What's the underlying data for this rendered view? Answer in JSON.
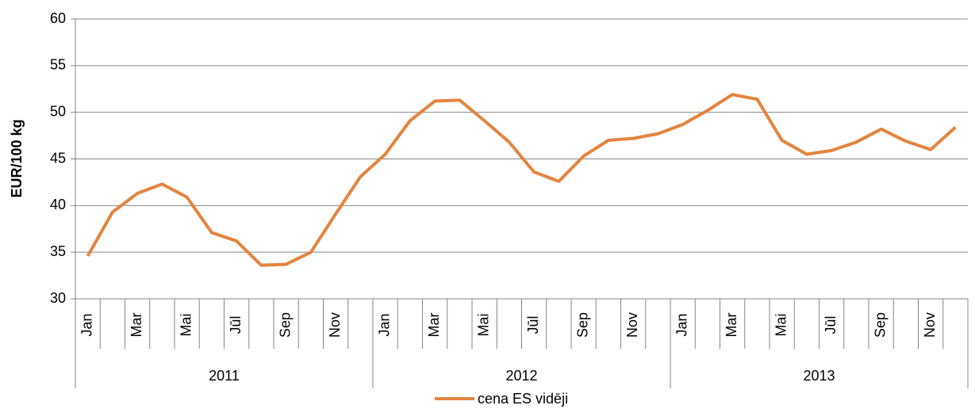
{
  "chart_data": {
    "type": "line",
    "y_label": "EUR/100 kg",
    "categories": [
      "Jan",
      null,
      "Mar",
      null,
      "Mai",
      null,
      "Jūl",
      null,
      "Sep",
      null,
      "Nov",
      null,
      "Jan",
      null,
      "Mar",
      null,
      "Mai",
      null,
      "Jūl",
      null,
      "Sep",
      null,
      "Nov",
      null,
      "Jan",
      null,
      "Mar",
      null,
      "Mai",
      null,
      "Jūl",
      null,
      "Sep",
      null,
      "Nov",
      null
    ],
    "years": [
      "2011",
      "2012",
      "2013"
    ],
    "series": [
      {
        "name": "cena ES vidēji",
        "color": "#e4843f",
        "values": [
          34.6,
          39.3,
          41.3,
          42.3,
          40.9,
          37.1,
          36.2,
          33.6,
          33.7,
          35.0,
          39.1,
          43.1,
          45.5,
          49.1,
          51.2,
          51.3,
          49.1,
          46.8,
          43.6,
          42.6,
          45.3,
          47.0,
          47.2,
          47.7,
          48.7,
          50.2,
          51.9,
          51.4,
          47.0,
          45.5,
          45.9,
          46.8,
          48.2,
          46.9,
          46.0,
          48.4
        ]
      }
    ],
    "ylim": [
      30,
      60
    ],
    "yticks": [
      30,
      35,
      40,
      45,
      50,
      55,
      60
    ],
    "grid": true,
    "legend": "bottom"
  }
}
